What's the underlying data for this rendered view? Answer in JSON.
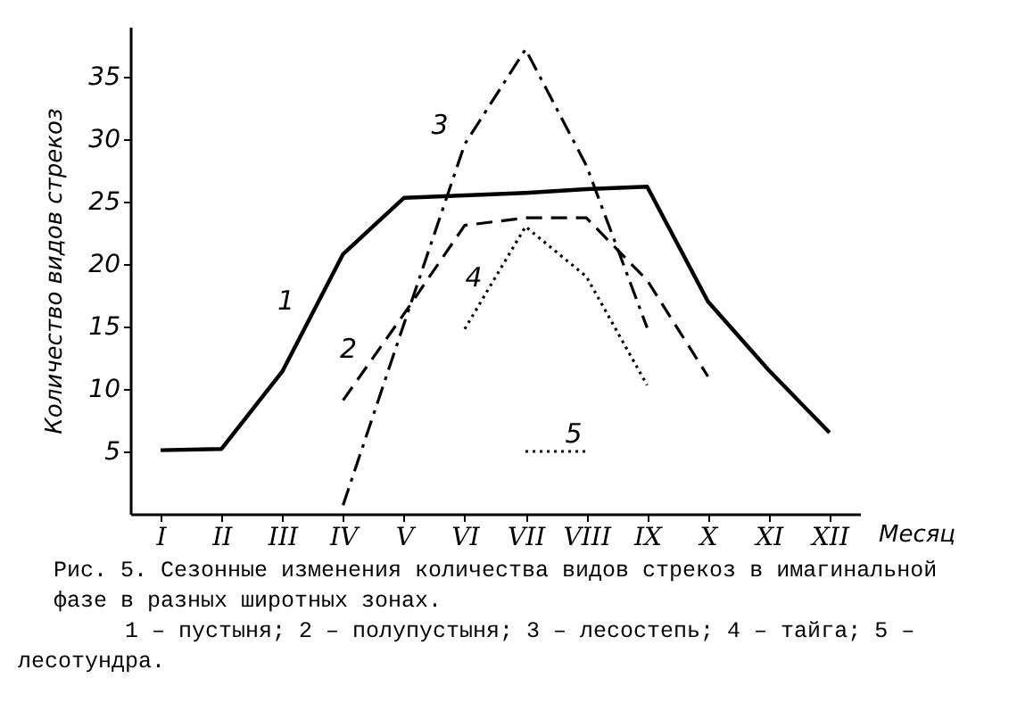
{
  "chart_data": {
    "type": "line",
    "xlabel": "Месяц",
    "ylabel": "Количество видов стрекоз",
    "categories": [
      "I",
      "II",
      "III",
      "IV",
      "V",
      "VI",
      "VII",
      "VIII",
      "IX",
      "X",
      "XI",
      "XII"
    ],
    "ylim": [
      0,
      39
    ],
    "yticks": [
      5,
      10,
      15,
      20,
      25,
      30,
      35
    ],
    "grid": false,
    "series": [
      {
        "name": "1",
        "color": "#000000",
        "line_style": "solid",
        "values": [
          5.1,
          5.2,
          11.4,
          20.8,
          25.3,
          25.5,
          25.7,
          26.0,
          26.2,
          17,
          11.5,
          6.5
        ]
      },
      {
        "name": "2",
        "color": "#000000",
        "line_style": "dashed",
        "values": [
          null,
          null,
          null,
          9.1,
          16,
          23.1,
          23.7,
          23.7,
          18.7,
          11,
          null,
          null
        ]
      },
      {
        "name": "3",
        "color": "#000000",
        "line_style": "dashdot",
        "values": [
          null,
          null,
          null,
          0.7,
          15.2,
          29.6,
          37.2,
          27.9,
          14.9,
          null,
          null,
          null
        ]
      },
      {
        "name": "4",
        "color": "#000000",
        "line_style": "dotted",
        "values": [
          null,
          null,
          null,
          null,
          null,
          14.8,
          23,
          19,
          10.3,
          null,
          null,
          null
        ]
      },
      {
        "name": "5",
        "color": "#000000",
        "line_style": "dotted",
        "values": [
          null,
          null,
          null,
          null,
          null,
          null,
          5,
          5,
          null,
          null,
          null,
          null
        ]
      }
    ],
    "annotations": [
      "Рис. 5. Сезонные изменения количества видов стрекоз в имагинальной фазе в разных широтных зонах.",
      "1 – пустыня; 2 – полупустыня; 3 – лесостепь; 4 – тайга; 5 – лесотундра."
    ]
  }
}
